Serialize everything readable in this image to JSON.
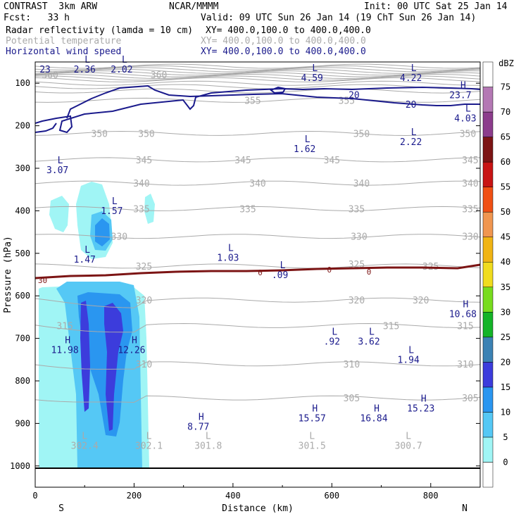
{
  "header": {
    "model": "CONTRAST  3km ARW",
    "org": "NCAR/MMMM",
    "init": "Init: 00 UTC Sat 25 Jan 14",
    "fcst": "Fcst:   33 h",
    "valid": "Valid: 09 UTC Sun 26 Jan 14 (19 ChT Sun 26 Jan 14)",
    "fields": [
      {
        "label": "Radar reflectivity (lamda = 10 cm)",
        "xy": "XY= 400.0,100.0 to 400.0,400.0",
        "color": "#000000"
      },
      {
        "label": "Potential temperature",
        "xy": "XY= 400.0,100.0 to 400.0,400.0",
        "color": "#aaaaaa"
      },
      {
        "label": "Horizontal wind speed",
        "xy": "XY= 400.0,100.0 to 400.0,400.0",
        "color": "#1a1a8c"
      }
    ]
  },
  "chart_data": {
    "type": "cross-section",
    "xlabel": "Distance (km)",
    "ylabel": "Pressure (hPa)",
    "xlim": [
      0,
      900
    ],
    "ylim": [
      1050,
      50
    ],
    "x_ticks": [
      0,
      200,
      400,
      600,
      800
    ],
    "y_ticks": [
      100,
      200,
      300,
      400,
      500,
      600,
      700,
      800,
      900,
      1000
    ],
    "end_labels": {
      "left": "S",
      "right": "N"
    },
    "colorbar": {
      "unit": "dBZ",
      "levels": [
        0,
        5,
        10,
        15,
        20,
        25,
        30,
        35,
        40,
        45,
        50,
        55,
        60,
        65,
        70,
        75
      ],
      "colors": [
        "#ffffff",
        "#a0f5f5",
        "#55c8f5",
        "#2a96f0",
        "#3c3cdc",
        "#3c82b4",
        "#14b428",
        "#78dc1e",
        "#f0dc1e",
        "#f0b414",
        "#f09650",
        "#f05014",
        "#c81414",
        "#7c1414",
        "#8c3c8c",
        "#b478b4",
        "#ffffff"
      ]
    },
    "theta_labels": [
      {
        "x": 440,
        "p": 140,
        "t": "355"
      },
      {
        "x": 630,
        "p": 140,
        "t": "355"
      },
      {
        "x": 130,
        "p": 218,
        "t": "350"
      },
      {
        "x": 225,
        "p": 218,
        "t": "350"
      },
      {
        "x": 660,
        "p": 218,
        "t": "350"
      },
      {
        "x": 875,
        "p": 218,
        "t": "350"
      },
      {
        "x": 220,
        "p": 280,
        "t": "345"
      },
      {
        "x": 420,
        "p": 280,
        "t": "345"
      },
      {
        "x": 600,
        "p": 280,
        "t": "345"
      },
      {
        "x": 880,
        "p": 280,
        "t": "345"
      },
      {
        "x": 215,
        "p": 335,
        "t": "340"
      },
      {
        "x": 450,
        "p": 335,
        "t": "340"
      },
      {
        "x": 660,
        "p": 335,
        "t": "340"
      },
      {
        "x": 880,
        "p": 335,
        "t": "340"
      },
      {
        "x": 215,
        "p": 395,
        "t": "335"
      },
      {
        "x": 430,
        "p": 395,
        "t": "335"
      },
      {
        "x": 650,
        "p": 395,
        "t": "335"
      },
      {
        "x": 880,
        "p": 395,
        "t": "335"
      },
      {
        "x": 170,
        "p": 460,
        "t": "330"
      },
      {
        "x": 655,
        "p": 460,
        "t": "330"
      },
      {
        "x": 880,
        "p": 460,
        "t": "330"
      },
      {
        "x": 220,
        "p": 530,
        "t": "325"
      },
      {
        "x": 650,
        "p": 525,
        "t": "325"
      },
      {
        "x": 800,
        "p": 530,
        "t": "325"
      },
      {
        "x": 220,
        "p": 610,
        "t": "320"
      },
      {
        "x": 650,
        "p": 610,
        "t": "320"
      },
      {
        "x": 780,
        "p": 610,
        "t": "320"
      },
      {
        "x": 60,
        "p": 670,
        "t": "315"
      },
      {
        "x": 720,
        "p": 670,
        "t": "315"
      },
      {
        "x": 870,
        "p": 670,
        "t": "315"
      },
      {
        "x": 220,
        "p": 760,
        "t": "310"
      },
      {
        "x": 640,
        "p": 760,
        "t": "310"
      },
      {
        "x": 870,
        "p": 760,
        "t": "310"
      },
      {
        "x": 640,
        "p": 840,
        "t": "305"
      },
      {
        "x": 880,
        "p": 840,
        "t": "305"
      },
      {
        "x": 30,
        "p": 80,
        "t": "360"
      },
      {
        "x": 250,
        "p": 80,
        "t": "360"
      }
    ],
    "surface_theta": [
      {
        "x": 100,
        "p": 960,
        "t": "302.4",
        "mark": "L"
      },
      {
        "x": 230,
        "p": 960,
        "t": "302.1",
        "mark": "L"
      },
      {
        "x": 350,
        "p": 960,
        "t": "301.8",
        "mark": "L"
      },
      {
        "x": 560,
        "p": 960,
        "t": "301.5",
        "mark": "L"
      },
      {
        "x": 755,
        "p": 960,
        "t": "300.7",
        "mark": "L"
      }
    ],
    "wind_extrema": [
      {
        "x": 20,
        "p": 75,
        "t": "23",
        "mark": ""
      },
      {
        "x": 100,
        "p": 75,
        "t": "2.36",
        "mark": "L"
      },
      {
        "x": 175,
        "p": 75,
        "t": "2.02",
        "mark": "L"
      },
      {
        "x": 560,
        "p": 95,
        "t": "4.59",
        "mark": "L"
      },
      {
        "x": 760,
        "p": 95,
        "t": "4.22",
        "mark": "L"
      },
      {
        "x": 860,
        "p": 135,
        "t": "23.7",
        "mark": "H"
      },
      {
        "x": 870,
        "p": 190,
        "t": "4.03",
        "mark": "L"
      },
      {
        "x": 760,
        "p": 245,
        "t": "2.22",
        "mark": "L"
      },
      {
        "x": 545,
        "p": 262,
        "t": "1.62",
        "mark": "L"
      },
      {
        "x": 45,
        "p": 312,
        "t": "3.07",
        "mark": "L"
      },
      {
        "x": 155,
        "p": 408,
        "t": "1.57",
        "mark": "L"
      },
      {
        "x": 100,
        "p": 522,
        "t": "1.47",
        "mark": "L"
      },
      {
        "x": 390,
        "p": 518,
        "t": "1.03",
        "mark": "L"
      },
      {
        "x": 495,
        "p": 558,
        "t": ".09",
        "mark": "L"
      },
      {
        "x": 865,
        "p": 650,
        "t": "10.68",
        "mark": "H"
      },
      {
        "x": 600,
        "p": 715,
        "t": ".92",
        "mark": "L"
      },
      {
        "x": 675,
        "p": 715,
        "t": "3.62",
        "mark": "L"
      },
      {
        "x": 755,
        "p": 758,
        "t": "1.94",
        "mark": "L"
      },
      {
        "x": 60,
        "p": 735,
        "t": "11.98",
        "mark": "H"
      },
      {
        "x": 195,
        "p": 735,
        "t": "12.26",
        "mark": "H"
      },
      {
        "x": 330,
        "p": 915,
        "t": "8.77",
        "mark": "H"
      },
      {
        "x": 560,
        "p": 895,
        "t": "15.57",
        "mark": "H"
      },
      {
        "x": 685,
        "p": 895,
        "t": "16.84",
        "mark": "H"
      },
      {
        "x": 780,
        "p": 872,
        "t": "15.23",
        "mark": "H"
      }
    ],
    "wind_contour_labels": [
      {
        "x": 645,
        "p": 135,
        "t": "20"
      },
      {
        "x": 760,
        "p": 158,
        "t": "20"
      }
    ],
    "zero_line_labels": [
      {
        "x": 15,
        "p": 563,
        "t": "30"
      },
      {
        "x": 455,
        "p": 545,
        "t": "0"
      },
      {
        "x": 595,
        "p": 538,
        "t": "0"
      },
      {
        "x": 675,
        "p": 543,
        "t": "0"
      }
    ]
  }
}
